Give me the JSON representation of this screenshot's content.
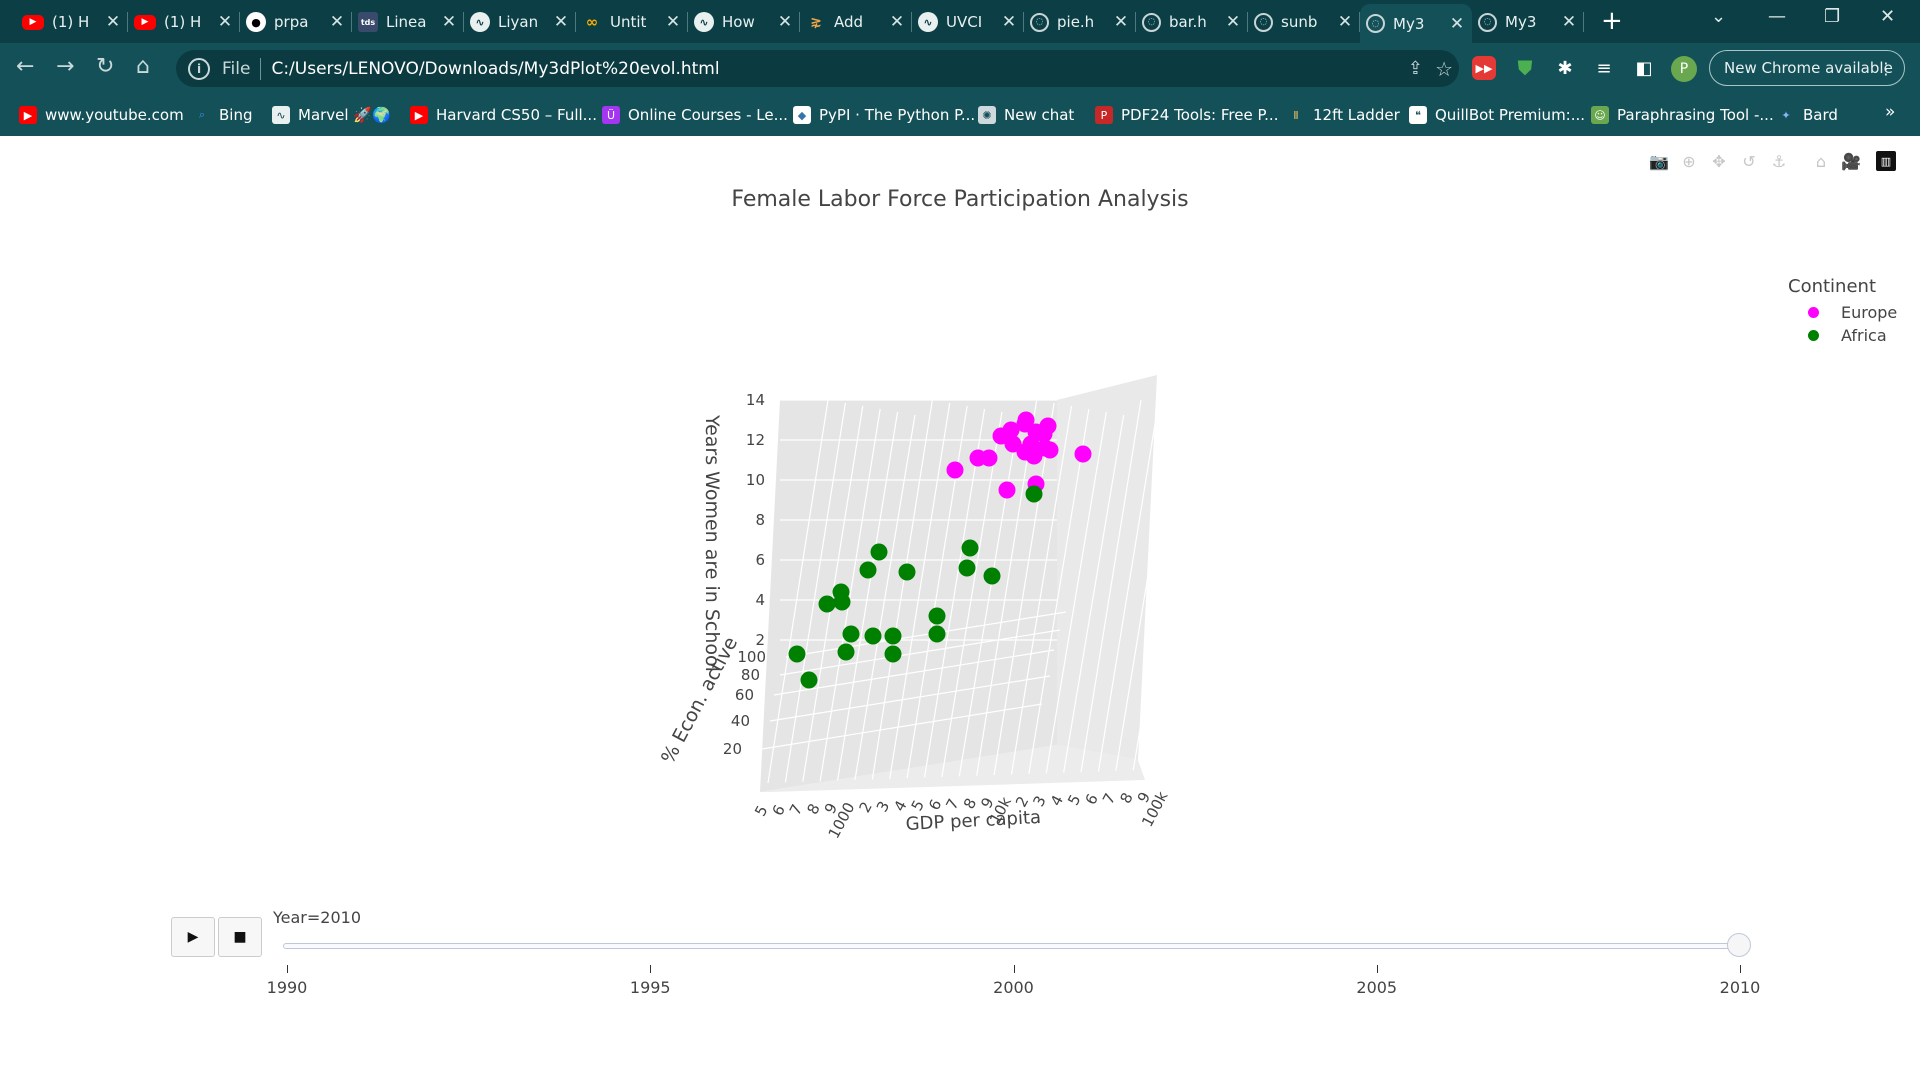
{
  "browser": {
    "tabs": [
      {
        "label": "(1) H",
        "icon": "youtube-icon"
      },
      {
        "label": "(1) H",
        "icon": "youtube-icon"
      },
      {
        "label": "prpa",
        "icon": "github-icon"
      },
      {
        "label": "Linea",
        "icon": "tds-icon"
      },
      {
        "label": "Liyan",
        "icon": "wave-icon"
      },
      {
        "label": "Untit",
        "icon": "colab-icon"
      },
      {
        "label": "How",
        "icon": "wave-icon"
      },
      {
        "label": "Add",
        "icon": "add-icon"
      },
      {
        "label": "UVCI",
        "icon": "wave-icon"
      },
      {
        "label": "pie.h",
        "icon": "globe-icon"
      },
      {
        "label": "bar.h",
        "icon": "globe-icon"
      },
      {
        "label": "sunb",
        "icon": "globe-icon"
      },
      {
        "label": "My3",
        "icon": "globe-icon",
        "active": true
      },
      {
        "label": "My3",
        "icon": "globe-icon"
      }
    ],
    "address": {
      "scheme": "File",
      "url": "C:/Users/LENOVO/Downloads/My3dPlot%20evol.html"
    },
    "profile_initial": "P",
    "update_button": "New Chrome available",
    "bookmarks": [
      {
        "label": "www.youtube.com",
        "icon": "youtube-icon"
      },
      {
        "label": "Bing",
        "icon": "bing-icon"
      },
      {
        "label": "Marvel 🚀🌍",
        "icon": "wave-icon"
      },
      {
        "label": "Harvard CS50 – Full...",
        "icon": "youtube-icon"
      },
      {
        "label": "Online Courses - Le...",
        "icon": "udemy-icon"
      },
      {
        "label": "PyPI · The Python P...",
        "icon": "pypi-icon"
      },
      {
        "label": "New chat",
        "icon": "chatgpt-icon"
      },
      {
        "label": "PDF24 Tools: Free P...",
        "icon": "pdf24-icon"
      },
      {
        "label": "12ft Ladder",
        "icon": "ladder-icon"
      },
      {
        "label": "QuillBot Premium:...",
        "icon": "quillbot-icon"
      },
      {
        "label": "Paraphrasing Tool -...",
        "icon": "paraphrase-icon"
      },
      {
        "label": "Bard",
        "icon": "bard-icon"
      }
    ]
  },
  "chart_data": {
    "type": "scatter3d",
    "title": "Female Labor Force Participation Analysis",
    "xlabel": "GDP per capita",
    "ylabel": "% Econ. active",
    "zlabel": "Years Women are in School",
    "x_scale": "log",
    "x_tick_labels": [
      "5",
      "6",
      "7",
      "8",
      "9",
      "1000",
      "2",
      "3",
      "4",
      "5",
      "6",
      "7",
      "8",
      "9",
      "10k",
      "2",
      "3",
      "4",
      "5",
      "6",
      "7",
      "8",
      "9",
      "100k"
    ],
    "y_tick_labels": [
      "20",
      "40",
      "60",
      "80",
      "100"
    ],
    "z_tick_labels": [
      "2",
      "4",
      "6",
      "8",
      "10",
      "12",
      "14"
    ],
    "legend_title": "Continent",
    "legend_position": "top-right",
    "series": [
      {
        "name": "Europe",
        "color": "#ff00ff",
        "z": [
          9.5,
          10.5,
          11.1,
          11.1,
          12.2,
          12.5,
          12.8,
          13.0,
          12.4,
          11.8,
          11.6,
          12.3,
          11.5,
          11.4,
          11.2,
          12.7,
          11.8,
          9.8,
          11.3
        ]
      },
      {
        "name": "Africa",
        "color": "#008000",
        "z": [
          9.3,
          6.6,
          5.6,
          5.2,
          3.2,
          2.3,
          6.4,
          5.4,
          5.5,
          4.4,
          3.9,
          3.8,
          2.2,
          2.3,
          1.3,
          1.3,
          2.2,
          1.4,
          0.0
        ]
      }
    ],
    "frame": {
      "slider_label": "Year=2010",
      "years": [
        "1990",
        "1995",
        "2000",
        "2005",
        "2010"
      ],
      "current": "2010"
    }
  },
  "modebar": [
    "camera-icon",
    "zoom-icon",
    "pan-icon",
    "orbit-icon",
    "turntable-icon",
    "home-icon",
    "video-icon",
    "plotly-logo-icon"
  ]
}
